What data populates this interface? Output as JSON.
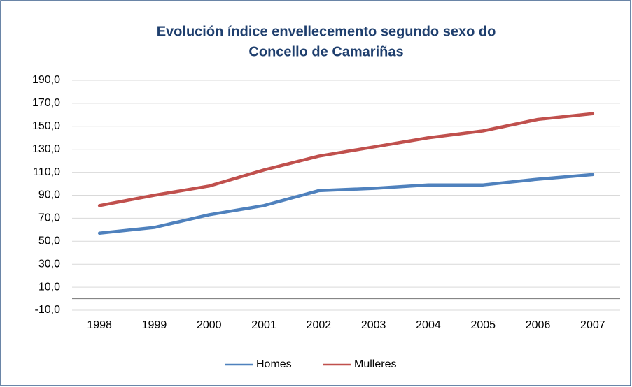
{
  "chart_data": {
    "type": "line",
    "title": [
      "Evolución índice envellecemento segundo sexo do",
      "Concello de Camariñas"
    ],
    "categories": [
      "1998",
      "1999",
      "2000",
      "2001",
      "2002",
      "2003",
      "2004",
      "2005",
      "2006",
      "2007"
    ],
    "series": [
      {
        "name": "Homes",
        "color": "#4f81bd",
        "values": [
          57,
          62,
          73,
          81,
          94,
          96,
          99,
          99,
          104,
          108
        ]
      },
      {
        "name": "Mulleres",
        "color": "#c0504d",
        "values": [
          81,
          90,
          98,
          112,
          124,
          132,
          140,
          146,
          156,
          161
        ]
      }
    ],
    "ylim": [
      -10,
      190
    ],
    "yticks": [
      {
        "value": -10,
        "label": "-10,0"
      },
      {
        "value": 10,
        "label": "10,0"
      },
      {
        "value": 30,
        "label": "30,0"
      },
      {
        "value": 50,
        "label": "50,0"
      },
      {
        "value": 70,
        "label": "70,0"
      },
      {
        "value": 90,
        "label": "90,0"
      },
      {
        "value": 110,
        "label": "110,0"
      },
      {
        "value": 130,
        "label": "130,0"
      },
      {
        "value": 150,
        "label": "150,0"
      },
      {
        "value": 170,
        "label": "170,0"
      },
      {
        "value": 190,
        "label": "190,0"
      }
    ],
    "grid": true,
    "legend": "bottom"
  }
}
